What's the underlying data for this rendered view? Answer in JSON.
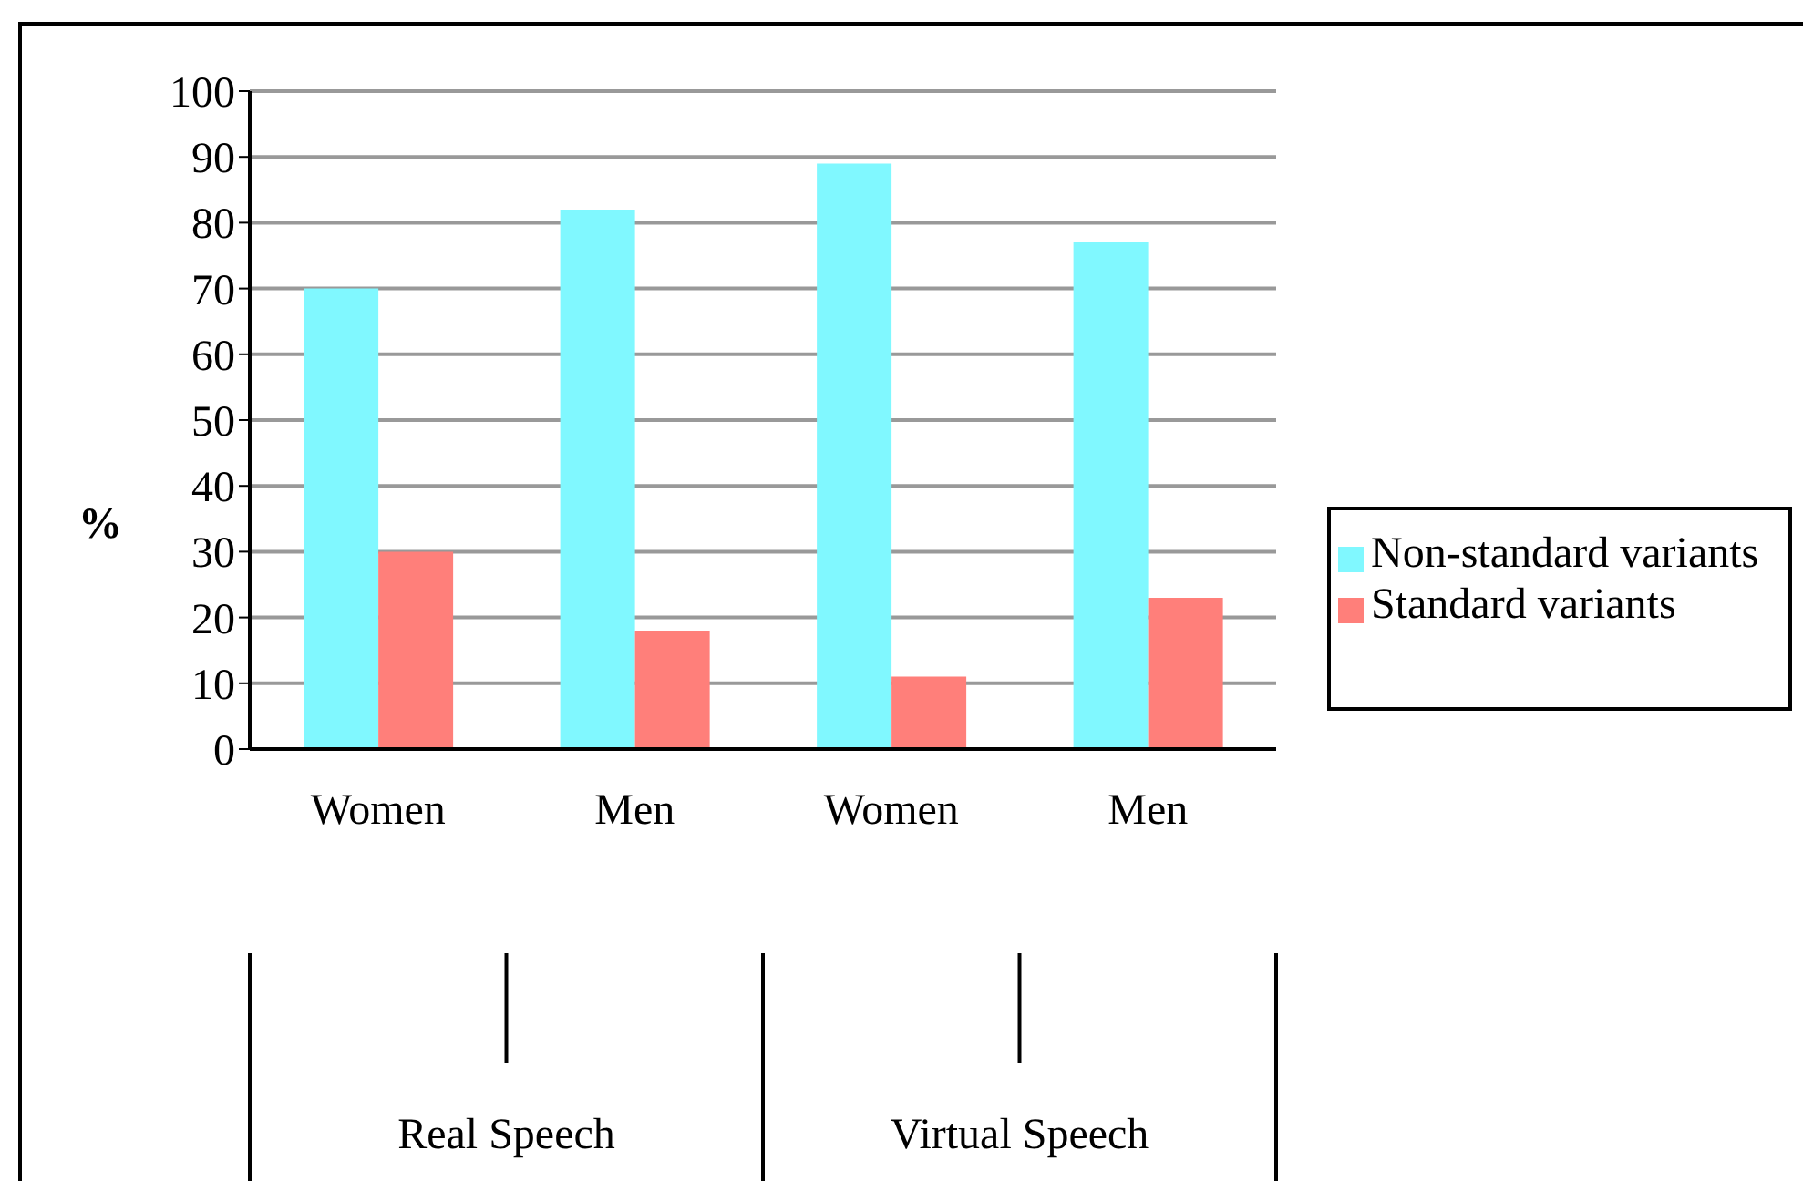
{
  "chart_data": {
    "type": "bar",
    "ylabel": "%",
    "categories": [
      "Women",
      "Men",
      "Women",
      "Men"
    ],
    "series": [
      {
        "name": "Non-standard variants",
        "color": "#80f8ff",
        "values": [
          70,
          82,
          89,
          77
        ]
      },
      {
        "name": "Standard variants",
        "color": "#ff7f7a",
        "values": [
          30,
          18,
          11,
          23
        ]
      }
    ],
    "ylim": [
      0,
      100
    ],
    "yticks": [
      0,
      10,
      20,
      30,
      40,
      50,
      60,
      70,
      80,
      90,
      100
    ],
    "grid": "y",
    "legend": "right",
    "annotations": [
      "Real Speech",
      "Virtual Speech"
    ]
  }
}
